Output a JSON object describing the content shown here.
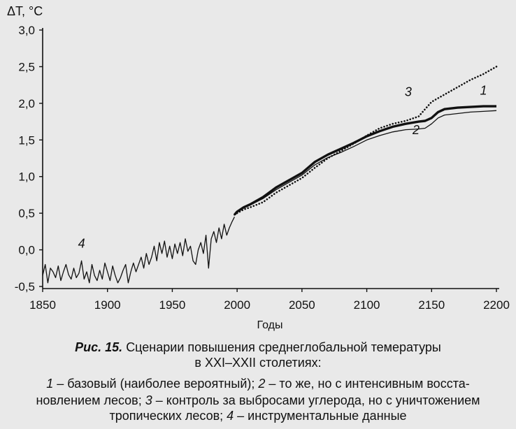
{
  "chart_data": {
    "type": "line",
    "ylabel": "ΔT, °C",
    "xlabel": "Годы",
    "xlim": [
      1850,
      2200
    ],
    "ylim": [
      -0.5,
      3.0
    ],
    "x_ticks": [
      1850,
      1900,
      1950,
      2000,
      2050,
      2100,
      2150,
      2200
    ],
    "x_tick_labels": [
      "1850",
      "1900",
      "1950",
      "2000",
      "2050",
      "2100",
      "2150",
      "2200"
    ],
    "y_ticks": [
      -0.5,
      0.0,
      0.5,
      1.0,
      1.5,
      2.0,
      2.5,
      3.0
    ],
    "y_tick_labels": [
      "-0,5",
      "0,0",
      "0,5",
      "1,0",
      "1,5",
      "2,0",
      "2,5",
      "3,0"
    ],
    "grid": false,
    "series": [
      {
        "name": "4",
        "style": "thin-solid",
        "x": [
          1850,
          1852,
          1854,
          1856,
          1858,
          1860,
          1862,
          1864,
          1866,
          1868,
          1870,
          1872,
          1874,
          1876,
          1878,
          1880,
          1882,
          1884,
          1886,
          1888,
          1890,
          1892,
          1894,
          1896,
          1898,
          1900,
          1902,
          1904,
          1906,
          1908,
          1910,
          1912,
          1914,
          1916,
          1918,
          1920,
          1922,
          1924,
          1926,
          1928,
          1930,
          1932,
          1934,
          1936,
          1938,
          1940,
          1942,
          1944,
          1946,
          1948,
          1950,
          1952,
          1954,
          1956,
          1958,
          1960,
          1962,
          1964,
          1966,
          1968,
          1970,
          1972,
          1974,
          1976,
          1978,
          1980,
          1982,
          1984,
          1986,
          1988,
          1990,
          1992,
          1994,
          1996,
          1998
        ],
        "y": [
          -0.35,
          -0.2,
          -0.45,
          -0.25,
          -0.3,
          -0.38,
          -0.22,
          -0.42,
          -0.3,
          -0.2,
          -0.34,
          -0.4,
          -0.25,
          -0.38,
          -0.32,
          -0.15,
          -0.4,
          -0.3,
          -0.45,
          -0.2,
          -0.35,
          -0.42,
          -0.28,
          -0.4,
          -0.18,
          -0.3,
          -0.42,
          -0.22,
          -0.35,
          -0.45,
          -0.38,
          -0.28,
          -0.2,
          -0.45,
          -0.3,
          -0.18,
          -0.3,
          -0.2,
          -0.1,
          -0.25,
          -0.05,
          -0.2,
          -0.1,
          0.05,
          -0.15,
          0.1,
          -0.05,
          0.12,
          -0.1,
          0.05,
          -0.12,
          0.08,
          -0.05,
          0.1,
          -0.08,
          0.15,
          -0.02,
          0.05,
          -0.15,
          -0.2,
          0.0,
          0.1,
          -0.05,
          0.2,
          -0.25,
          0.15,
          0.25,
          0.1,
          0.3,
          0.15,
          0.35,
          0.2,
          0.3,
          0.38,
          0.45
        ]
      },
      {
        "name": "1",
        "style": "thick-solid",
        "x": [
          1998,
          2000,
          2005,
          2010,
          2020,
          2030,
          2040,
          2050,
          2060,
          2070,
          2080,
          2090,
          2100,
          2110,
          2120,
          2130,
          2140,
          2145,
          2150,
          2155,
          2160,
          2170,
          2180,
          2190,
          2200
        ],
        "y": [
          0.48,
          0.52,
          0.58,
          0.62,
          0.72,
          0.85,
          0.95,
          1.05,
          1.2,
          1.3,
          1.38,
          1.46,
          1.55,
          1.62,
          1.68,
          1.72,
          1.75,
          1.76,
          1.8,
          1.88,
          1.92,
          1.94,
          1.95,
          1.96,
          1.96
        ]
      },
      {
        "name": "2",
        "style": "thin-solid",
        "x": [
          1998,
          2000,
          2005,
          2010,
          2020,
          2030,
          2040,
          2050,
          2060,
          2070,
          2080,
          2090,
          2100,
          2110,
          2120,
          2130,
          2140,
          2145,
          2150,
          2155,
          2160,
          2170,
          2180,
          2190,
          2200
        ],
        "y": [
          0.48,
          0.52,
          0.57,
          0.61,
          0.7,
          0.82,
          0.92,
          1.02,
          1.16,
          1.26,
          1.33,
          1.41,
          1.5,
          1.56,
          1.61,
          1.64,
          1.65,
          1.66,
          1.72,
          1.8,
          1.84,
          1.86,
          1.88,
          1.89,
          1.9
        ]
      },
      {
        "name": "3",
        "style": "dotted",
        "x": [
          1998,
          2000,
          2005,
          2010,
          2020,
          2030,
          2040,
          2050,
          2060,
          2070,
          2080,
          2090,
          2100,
          2110,
          2120,
          2130,
          2140,
          2145,
          2150,
          2160,
          2170,
          2180,
          2190,
          2200
        ],
        "y": [
          0.48,
          0.5,
          0.55,
          0.58,
          0.65,
          0.78,
          0.88,
          0.98,
          1.12,
          1.25,
          1.35,
          1.45,
          1.56,
          1.66,
          1.72,
          1.76,
          1.82,
          1.92,
          2.02,
          2.12,
          2.22,
          2.32,
          2.4,
          2.5
        ]
      }
    ],
    "annotations": [
      {
        "text": "1",
        "x": 2190,
        "y": 2.12
      },
      {
        "text": "2",
        "x": 2138,
        "y": 1.58
      },
      {
        "text": "3",
        "x": 2132,
        "y": 2.1
      },
      {
        "text": "4",
        "x": 1880,
        "y": 0.03
      }
    ]
  },
  "caption": {
    "figure_label": "Рис. 15.",
    "title_line_1": "Сценарии повышения среднеглобальной темературы",
    "title_line_2": "в XXI–XXII столетиях:",
    "legend_1_num": "1",
    "legend_1_text": " – базовый (наиболее вероятный); ",
    "legend_2_num": "2",
    "legend_2_text": " – то же, но с интенсивным восста-",
    "legend_line_2_text": "новлением лесов; ",
    "legend_3_num": "3",
    "legend_3_text": " – контроль за выбросами углерода, но с уничтожением",
    "legend_line_3_text": "тропических лесов; ",
    "legend_4_num": "4",
    "legend_4_text": " – инструментальные данные"
  },
  "colors": {
    "background": "#e9e9e9",
    "ink": "#111111"
  }
}
